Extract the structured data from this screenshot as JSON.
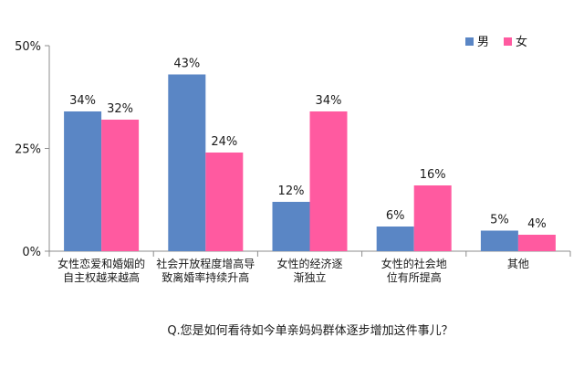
{
  "chart_data": {
    "type": "bar",
    "categories": [
      [
        "女性恋爱和婚姻的",
        "自主权越来越高"
      ],
      [
        "社会开放程度增高导",
        "致离婚率持续升高"
      ],
      [
        "女性的经济逐",
        "渐独立"
      ],
      [
        "女性的社会地",
        "位有所提高"
      ],
      [
        "其他"
      ]
    ],
    "series": [
      {
        "name": "男",
        "values": [
          34,
          43,
          12,
          6,
          5
        ],
        "labels": [
          "34%",
          "43%",
          "12%",
          "6%",
          "5%"
        ],
        "color": "#5a86c5"
      },
      {
        "name": "女",
        "values": [
          32,
          24,
          34,
          16,
          4
        ],
        "labels": [
          "32%",
          "24%",
          "34%",
          "16%",
          "4%"
        ],
        "color": "#ff5aa0"
      }
    ],
    "ylim": [
      0,
      50
    ],
    "yticks": [
      0,
      25,
      50
    ],
    "ytick_labels": [
      "0%",
      "25%",
      "50%"
    ],
    "legend_position": "top-right",
    "grid": false,
    "caption": "Q.您是如何看待如今单亲妈妈群体逐步增加这件事儿？"
  }
}
